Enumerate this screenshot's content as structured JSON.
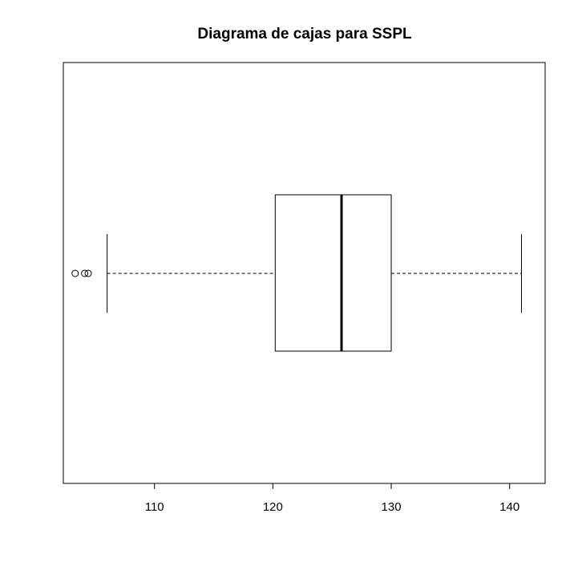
{
  "chart_data": {
    "type": "boxplot",
    "title": "Diagrama de cajas para SSPL",
    "orientation": "horizontal",
    "xlim": [
      102.3,
      143
    ],
    "xticks": [
      110,
      120,
      130,
      140
    ],
    "series": [
      {
        "whisker_low": 106.0,
        "q1": 120.2,
        "median": 125.8,
        "q3": 130.0,
        "whisker_high": 141.0,
        "outliers": [
          103.3,
          104.1,
          104.4
        ]
      }
    ]
  }
}
